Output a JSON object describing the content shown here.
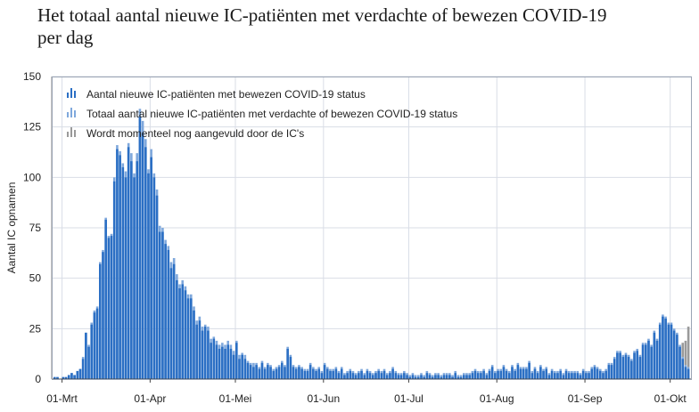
{
  "title_lines": [
    "Het totaal aantal nieuwe IC-patiënten met verdachte of bewezen COVID-19",
    "per dag"
  ],
  "chart_data": {
    "type": "bar",
    "title": "Het totaal aantal nieuwe IC-patiënten met verdachte of bewezen COVID-19 per dag",
    "xlabel": "",
    "ylabel": "Aantal IC opnamen",
    "ylim": [
      0,
      150
    ],
    "yticks": [
      0,
      25,
      50,
      75,
      100,
      125,
      150
    ],
    "grid": true,
    "legend_position": "top-left",
    "start_date": "2020-02-27",
    "xtick_labels": [
      "01-Mrt",
      "01-Apr",
      "01-Mei",
      "01-Jun",
      "01-Jul",
      "01-Aug",
      "01-Sep",
      "01-Okt"
    ],
    "xtick_day_index": [
      3,
      34,
      64,
      95,
      125,
      156,
      187,
      217
    ],
    "series": [
      {
        "name": "Aantal nieuwe IC-patiënten met bewezen COVID-19 status",
        "color": "#2b6fc4",
        "values": [
          1,
          1,
          0,
          1,
          1,
          2,
          3,
          2,
          4,
          5,
          10,
          23,
          16,
          27,
          33,
          35,
          57,
          63,
          79,
          70,
          71,
          98,
          114,
          111,
          105,
          100,
          115,
          108,
          100,
          108,
          130,
          122,
          115,
          102,
          110,
          100,
          91,
          73,
          73,
          67,
          64,
          55,
          57,
          49,
          45,
          47,
          44,
          40,
          40,
          34,
          27,
          29,
          24,
          26,
          24,
          18,
          20,
          17,
          15,
          16,
          15,
          17,
          15,
          12,
          18,
          10,
          12,
          10,
          8,
          7,
          6,
          7,
          5,
          8,
          5,
          7,
          6,
          4,
          5,
          6,
          8,
          6,
          15,
          11,
          6,
          5,
          6,
          5,
          4,
          4,
          7,
          5,
          4,
          5,
          3,
          7,
          5,
          4,
          4,
          5,
          3,
          5,
          2,
          3,
          4,
          3,
          2,
          3,
          4,
          2,
          4,
          3,
          2,
          3,
          4,
          3,
          4,
          2,
          3,
          5,
          3,
          2,
          2,
          3,
          2,
          1,
          2,
          1,
          1,
          2,
          1,
          3,
          2,
          1,
          2,
          2,
          1,
          2,
          2,
          2,
          1,
          3,
          1,
          1,
          2,
          2,
          2,
          3,
          4,
          3,
          3,
          4,
          2,
          4,
          6,
          3,
          4,
          4,
          6,
          4,
          3,
          6,
          4,
          7,
          5,
          5,
          5,
          8,
          3,
          5,
          3,
          6,
          4,
          5,
          2,
          4,
          3,
          3,
          4,
          2,
          4,
          3,
          3,
          3,
          3,
          2,
          4,
          3,
          3,
          5,
          6,
          5,
          4,
          3,
          4,
          7,
          7,
          10,
          13,
          13,
          11,
          12,
          11,
          9,
          13,
          14,
          11,
          17,
          17,
          19,
          16,
          23,
          19,
          27,
          31,
          30,
          27,
          27,
          24,
          22,
          16,
          10,
          6,
          5
        ]
      },
      {
        "name": "Totaal aantal nieuwe IC-patiënten met verdachte of bewezen COVID-19 status",
        "color": "#7fa8dc",
        "values": [
          1,
          1,
          0,
          1,
          1,
          2,
          3,
          2,
          4,
          5,
          11,
          23,
          17,
          28,
          34,
          36,
          58,
          64,
          80,
          71,
          72,
          100,
          116,
          113,
          107,
          103,
          117,
          112,
          102,
          112,
          134,
          128,
          119,
          104,
          114,
          102,
          94,
          76,
          75,
          69,
          66,
          58,
          60,
          52,
          47,
          49,
          46,
          42,
          42,
          36,
          29,
          31,
          26,
          27,
          26,
          20,
          21,
          19,
          17,
          18,
          17,
          19,
          17,
          14,
          19,
          12,
          13,
          12,
          9,
          8,
          8,
          8,
          6,
          9,
          6,
          8,
          7,
          5,
          6,
          7,
          9,
          7,
          16,
          12,
          7,
          6,
          7,
          6,
          5,
          5,
          8,
          6,
          5,
          6,
          4,
          8,
          6,
          5,
          5,
          6,
          4,
          6,
          3,
          4,
          5,
          4,
          3,
          4,
          5,
          3,
          5,
          4,
          3,
          4,
          5,
          4,
          5,
          3,
          4,
          6,
          4,
          3,
          3,
          4,
          3,
          2,
          3,
          2,
          2,
          3,
          2,
          4,
          3,
          2,
          3,
          3,
          2,
          3,
          3,
          3,
          2,
          4,
          2,
          2,
          3,
          3,
          3,
          4,
          5,
          4,
          4,
          5,
          3,
          5,
          7,
          4,
          5,
          5,
          7,
          5,
          4,
          7,
          5,
          8,
          6,
          6,
          6,
          9,
          4,
          6,
          4,
          7,
          5,
          6,
          3,
          5,
          4,
          4,
          5,
          3,
          5,
          4,
          4,
          4,
          4,
          3,
          5,
          4,
          4,
          6,
          7,
          6,
          5,
          4,
          5,
          8,
          8,
          11,
          14,
          14,
          12,
          13,
          12,
          10,
          14,
          15,
          12,
          18,
          18,
          20,
          17,
          24,
          20,
          28,
          32,
          31,
          28,
          28,
          25,
          23,
          17,
          11,
          7,
          6
        ]
      },
      {
        "name": "Wordt momenteel nog aangevuld door de IC's",
        "color": "#9a9a9a",
        "values": [
          0,
          0,
          0,
          0,
          0,
          0,
          0,
          0,
          0,
          0,
          0,
          0,
          0,
          0,
          0,
          0,
          0,
          0,
          0,
          0,
          0,
          0,
          0,
          0,
          0,
          0,
          0,
          0,
          0,
          0,
          0,
          0,
          0,
          0,
          0,
          0,
          0,
          0,
          0,
          0,
          0,
          0,
          0,
          0,
          0,
          0,
          0,
          0,
          0,
          0,
          0,
          0,
          0,
          0,
          0,
          0,
          0,
          0,
          0,
          0,
          0,
          0,
          0,
          0,
          0,
          0,
          0,
          0,
          0,
          0,
          0,
          0,
          0,
          0,
          0,
          0,
          0,
          0,
          0,
          0,
          0,
          0,
          0,
          0,
          0,
          0,
          0,
          0,
          0,
          0,
          0,
          0,
          0,
          0,
          0,
          0,
          0,
          0,
          0,
          0,
          0,
          0,
          0,
          0,
          0,
          0,
          0,
          0,
          0,
          0,
          0,
          0,
          0,
          0,
          0,
          0,
          0,
          0,
          0,
          0,
          0,
          0,
          0,
          0,
          0,
          0,
          0,
          0,
          0,
          0,
          0,
          0,
          0,
          0,
          0,
          0,
          0,
          0,
          0,
          0,
          0,
          0,
          0,
          0,
          0,
          0,
          0,
          0,
          0,
          0,
          0,
          0,
          0,
          0,
          0,
          0,
          0,
          0,
          0,
          0,
          0,
          0,
          0,
          0,
          0,
          0,
          0,
          0,
          0,
          0,
          0,
          0,
          0,
          0,
          0,
          0,
          0,
          0,
          0,
          0,
          0,
          0,
          0,
          0,
          0,
          0,
          0,
          0,
          0,
          0,
          0,
          0,
          0,
          0,
          0,
          0,
          0,
          0,
          0,
          0,
          0,
          0,
          0,
          0,
          0,
          0,
          0,
          0,
          0,
          0,
          0,
          0,
          0,
          0,
          0,
          0,
          0,
          0,
          0,
          0,
          0,
          7,
          12,
          20
        ]
      }
    ]
  }
}
